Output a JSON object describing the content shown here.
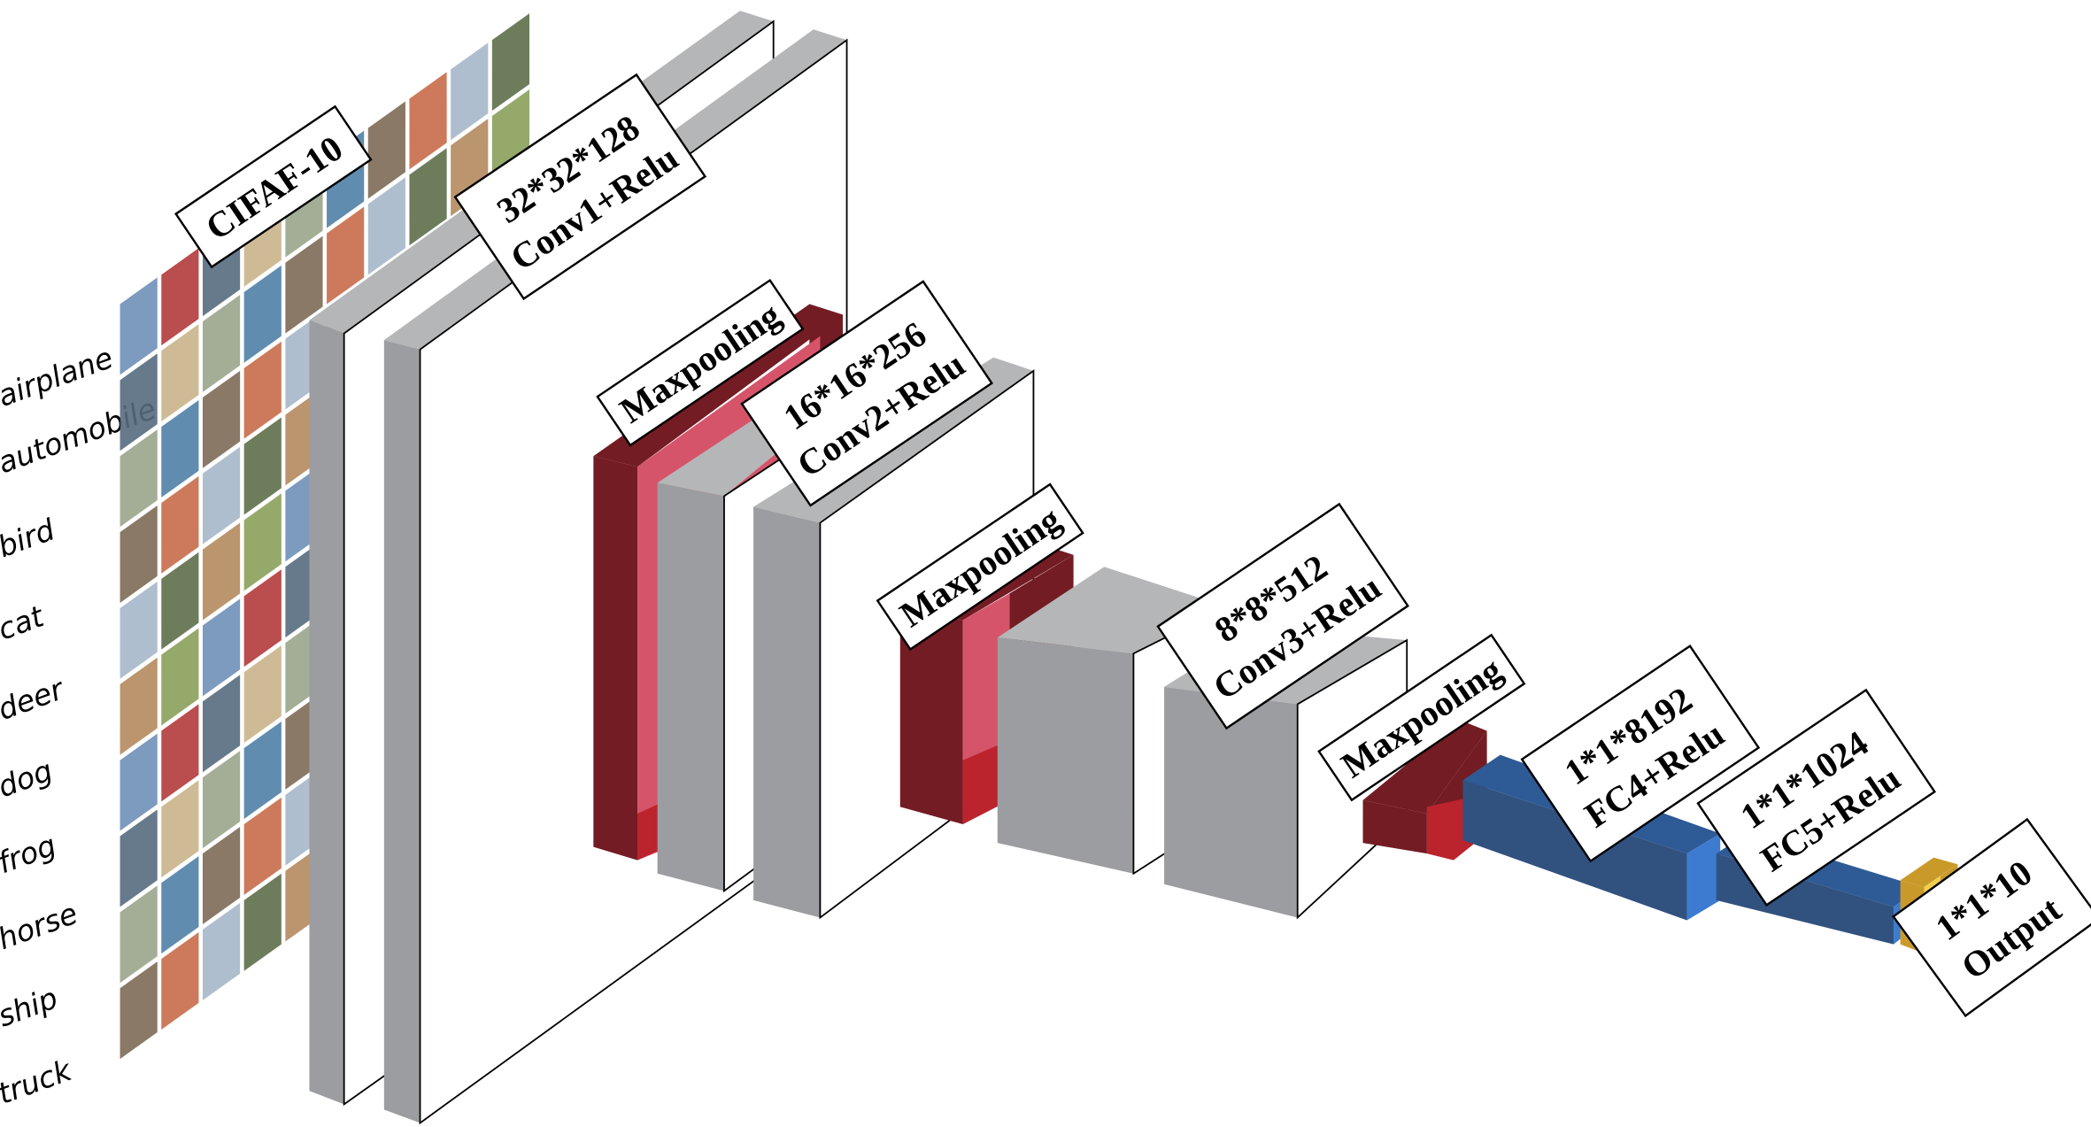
{
  "dataset_label": "CIFAF-10",
  "classes": [
    "airplane",
    "automobile",
    "bird",
    "cat",
    "deer",
    "dog",
    "frog",
    "horse",
    "ship",
    "truck"
  ],
  "layers": {
    "conv1": {
      "line1": "32*32*128",
      "line2": "Conv1+Relu"
    },
    "pool1": {
      "line1": "Maxpooling"
    },
    "conv2": {
      "line1": "16*16*256",
      "line2": "Conv2+Relu"
    },
    "pool2": {
      "line1": "Maxpooling"
    },
    "conv3": {
      "line1": "8*8*512",
      "line2": "Conv3+Relu"
    },
    "pool3": {
      "line1": "Maxpooling"
    },
    "fc4": {
      "line1": "1*1*8192",
      "line2": "FC4+Relu"
    },
    "fc5": {
      "line1": "1*1*1024",
      "line2": "FC5+Relu"
    },
    "output": {
      "line1": "1*1*10",
      "line2": "Output"
    }
  },
  "colors": {
    "conv_side": "#9c9da0",
    "conv_top": "#b5b6b8",
    "pool_dark": "#731c24",
    "pool_light": "#d6546a",
    "pool_bright": "#bb232d",
    "fc_front": "#31527f",
    "fc_top": "#2e5a96",
    "fc_side": "#3c7bd0",
    "output": "#c99a2a",
    "output_light": "#f2cf4a"
  }
}
